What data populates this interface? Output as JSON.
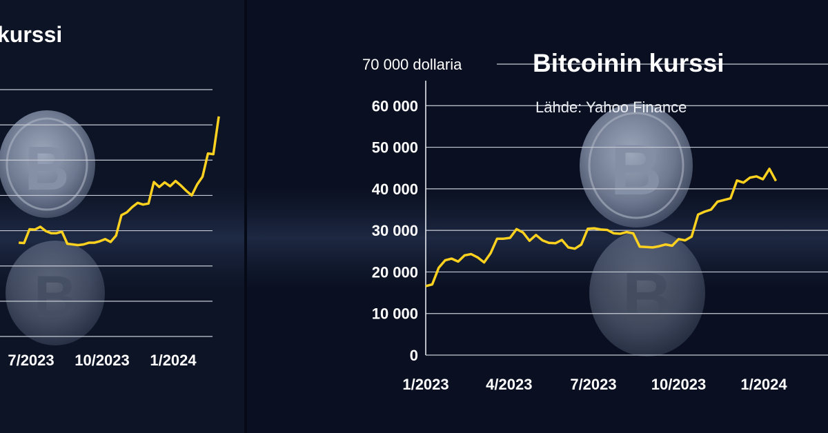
{
  "meta": {
    "colors": {
      "line": "#ffd21f",
      "text": "#ffffff",
      "grid": "#c8ccd6",
      "background": "#0b1122"
    }
  },
  "panels": {
    "left": {
      "title_fragment": "kurssi"
    },
    "main": {
      "title": "Bitcoinin kurssi",
      "source": "Lähde: Yahoo Finance"
    }
  },
  "chart_data": [
    {
      "panel": "main",
      "type": "line",
      "title": "Bitcoinin kurssi",
      "source": "Lähde: Yahoo Finance",
      "ylabel": "dollaria",
      "ylim": [
        0,
        70000
      ],
      "yticks": [
        0,
        10000,
        20000,
        30000,
        40000,
        50000,
        60000,
        70000
      ],
      "ytick_labels": [
        "0",
        "10 000",
        "20 000",
        "30 000",
        "40 000",
        "50 000",
        "60 000",
        "70 000 dollaria"
      ],
      "xtick_labels": [
        "1/2023",
        "4/2023",
        "7/2023",
        "10/2023",
        "1/2024"
      ],
      "grid": true,
      "series": [
        {
          "x": [
            "2023-01-01",
            "2023-01-08",
            "2023-01-15",
            "2023-01-22",
            "2023-01-29",
            "2023-02-05",
            "2023-02-12",
            "2023-02-19",
            "2023-02-26",
            "2023-03-05",
            "2023-03-12",
            "2023-03-19",
            "2023-03-26",
            "2023-04-02",
            "2023-04-09",
            "2023-04-16",
            "2023-04-23",
            "2023-04-30",
            "2023-05-07",
            "2023-05-14",
            "2023-05-21",
            "2023-05-28",
            "2023-06-04",
            "2023-06-11",
            "2023-06-18",
            "2023-06-25",
            "2023-07-02",
            "2023-07-09",
            "2023-07-16",
            "2023-07-23",
            "2023-07-30",
            "2023-08-06",
            "2023-08-13",
            "2023-08-20",
            "2023-08-27",
            "2023-09-03",
            "2023-09-10",
            "2023-09-17",
            "2023-09-24",
            "2023-10-01",
            "2023-10-08",
            "2023-10-15",
            "2023-10-22",
            "2023-10-29",
            "2023-11-05",
            "2023-11-12",
            "2023-11-19",
            "2023-11-26",
            "2023-12-03",
            "2023-12-10",
            "2023-12-17",
            "2023-12-24",
            "2023-12-31",
            "2024-01-07",
            "2024-01-14"
          ],
          "values": [
            16600,
            17000,
            21000,
            22800,
            23200,
            22500,
            24000,
            24300,
            23500,
            22300,
            24500,
            28000,
            28000,
            28200,
            30300,
            29500,
            27500,
            28900,
            27600,
            27000,
            26900,
            27700,
            25900,
            25600,
            26600,
            30400,
            30500,
            30200,
            30100,
            29300,
            29200,
            29600,
            29300,
            26100,
            26000,
            25900,
            26200,
            26600,
            26300,
            27900,
            27600,
            28500,
            33800,
            34500,
            35000,
            36900,
            37300,
            37700,
            42000,
            41500,
            42700,
            43000,
            42300,
            44800,
            41900
          ]
        }
      ]
    },
    {
      "panel": "left",
      "type": "line",
      "xtick_labels": [
        "7/2023",
        "10/2023",
        "1/2024"
      ],
      "grid": true,
      "series": [
        {
          "x": [
            "2023-06-15",
            "2023-06-22",
            "2023-06-29",
            "2023-07-06",
            "2023-07-13",
            "2023-07-20",
            "2023-07-27",
            "2023-08-03",
            "2023-08-10",
            "2023-08-17",
            "2023-08-24",
            "2023-08-31",
            "2023-09-07",
            "2023-09-14",
            "2023-09-21",
            "2023-09-28",
            "2023-10-05",
            "2023-10-12",
            "2023-10-19",
            "2023-10-26",
            "2023-11-02",
            "2023-11-09",
            "2023-11-16",
            "2023-11-23",
            "2023-11-30",
            "2023-12-07",
            "2023-12-14",
            "2023-12-21",
            "2023-12-28",
            "2024-01-04",
            "2024-01-11",
            "2024-01-18",
            "2024-01-25",
            "2024-02-01",
            "2024-02-08",
            "2024-02-15",
            "2024-02-22",
            "2024-02-29"
          ],
          "values": [
            26600,
            26500,
            30400,
            30300,
            31100,
            29900,
            29300,
            29300,
            29700,
            26300,
            26100,
            25900,
            26100,
            26600,
            26600,
            27000,
            27600,
            26800,
            28600,
            34400,
            35200,
            36700,
            37900,
            37400,
            37700,
            43800,
            42400,
            43700,
            42600,
            44100,
            42800,
            41300,
            40000,
            43100,
            45300,
            51900,
            51700,
            62400
          ]
        }
      ]
    }
  ]
}
